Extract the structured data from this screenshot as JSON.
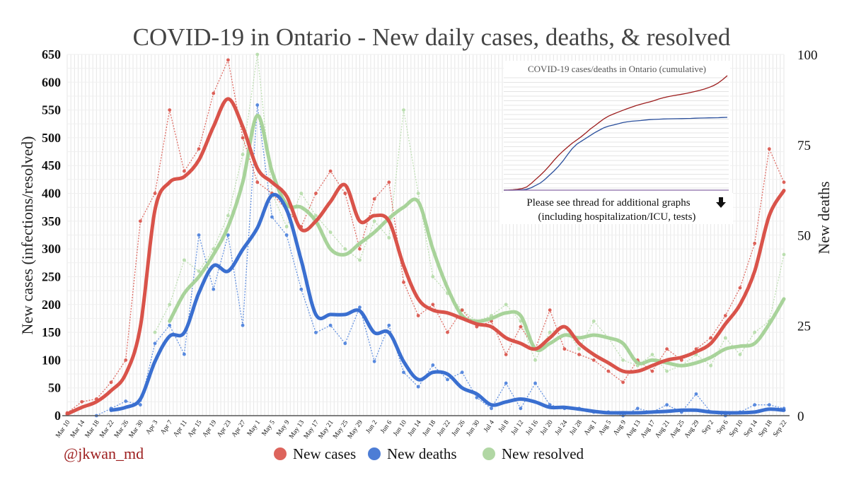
{
  "chart_data": {
    "type": "line",
    "title": "COVID-19 in Ontario - New daily cases, deaths, & resolved",
    "ylabel": "New cases (infections/resolved)",
    "y2label": "New deaths",
    "ylim": [
      0,
      650
    ],
    "y2lim": [
      0,
      100
    ],
    "yticks": [
      0,
      50,
      100,
      150,
      200,
      250,
      300,
      350,
      400,
      450,
      500,
      550,
      600,
      650
    ],
    "y2ticks": [
      0,
      25,
      50,
      75,
      100
    ],
    "grid": true,
    "legend_position": "bottom",
    "x": [
      "Mar 10",
      "Mar 14",
      "Mar 18",
      "Mar 22",
      "Mar 26",
      "Mar 30",
      "Apr 3",
      "Apr 7",
      "Apr 11",
      "Apr 15",
      "Apr 19",
      "Apr 23",
      "Apr 27",
      "May 1",
      "May 5",
      "May 9",
      "May 13",
      "May 17",
      "May 21",
      "May 25",
      "May 29",
      "Jun 2",
      "Jun 6",
      "Jun 10",
      "Jun 14",
      "Jun 18",
      "Jun 22",
      "Jun 26",
      "Jun 30",
      "Jul 4",
      "Jul 8",
      "Jul 12",
      "Jul 16",
      "Jul 20",
      "Jul 24",
      "Jul 28",
      "Aug 1",
      "Aug 5",
      "Aug 9",
      "Aug 13",
      "Aug 17",
      "Aug 21",
      "Aug 25",
      "Aug 29",
      "Sep 2",
      "Sep 6",
      "Sep 10",
      "Sep 14",
      "Sep 18",
      "Sep 22"
    ],
    "series": [
      {
        "name": "New cases",
        "axis": "left",
        "color": "#d9534a",
        "raw_color": "#d9534a",
        "avg": [
          3,
          15,
          25,
          45,
          75,
          160,
          370,
          420,
          430,
          460,
          520,
          570,
          520,
          445,
          420,
          395,
          335,
          350,
          385,
          415,
          350,
          360,
          350,
          270,
          210,
          190,
          185,
          175,
          165,
          160,
          140,
          130,
          120,
          140,
          160,
          130,
          110,
          95,
          80,
          80,
          90,
          100,
          105,
          115,
          130,
          165,
          200,
          260,
          360,
          405
        ],
        "daily": [
          5,
          25,
          30,
          60,
          100,
          350,
          400,
          550,
          440,
          480,
          580,
          640,
          500,
          420,
          400,
          370,
          340,
          400,
          440,
          400,
          300,
          390,
          420,
          240,
          180,
          200,
          150,
          190,
          160,
          170,
          110,
          160,
          120,
          190,
          120,
          110,
          100,
          80,
          60,
          100,
          80,
          120,
          100,
          120,
          140,
          180,
          230,
          310,
          480,
          420
        ]
      },
      {
        "name": "New deaths",
        "axis": "right",
        "color": "#3a6fd0",
        "raw_color": "#4a7fdc",
        "avg": [
          null,
          null,
          null,
          1.5,
          2.3,
          4.6,
          15,
          22,
          23,
          34,
          41.5,
          40,
          46,
          52,
          61,
          57,
          43,
          28,
          28,
          28,
          29,
          23,
          23,
          15,
          10,
          12,
          11.5,
          7.7,
          6,
          3,
          3.8,
          4.6,
          3.8,
          2.3,
          2.3,
          1.8,
          1.2,
          0.8,
          0.8,
          0.8,
          1,
          1.2,
          1.5,
          1.5,
          1,
          0.8,
          0.8,
          1,
          1.8,
          1.5
        ],
        "daily": [
          null,
          null,
          0,
          2,
          4,
          3,
          20,
          25,
          17,
          50,
          35,
          50,
          25,
          86,
          55,
          50,
          35,
          23,
          25,
          20,
          30,
          15,
          25,
          12,
          8,
          14,
          10,
          12,
          5,
          2,
          9,
          2,
          9,
          3,
          2,
          2,
          1,
          1,
          0,
          2,
          1,
          3,
          1,
          6,
          1,
          0,
          1,
          3,
          3,
          2
        ]
      },
      {
        "name": "New resolved",
        "axis": "left",
        "color": "#a8d39a",
        "raw_color": "#b5dba8",
        "avg": [
          null,
          null,
          null,
          null,
          null,
          null,
          null,
          170,
          220,
          250,
          290,
          340,
          420,
          540,
          440,
          380,
          375,
          350,
          300,
          290,
          310,
          330,
          355,
          375,
          385,
          300,
          230,
          180,
          170,
          175,
          185,
          180,
          120,
          130,
          145,
          140,
          145,
          140,
          130,
          95,
          100,
          95,
          90,
          95,
          105,
          120,
          125,
          130,
          165,
          210
        ],
        "daily": [
          null,
          null,
          null,
          null,
          null,
          null,
          150,
          200,
          280,
          260,
          300,
          360,
          470,
          650,
          400,
          340,
          400,
          360,
          330,
          300,
          280,
          350,
          320,
          550,
          400,
          250,
          220,
          190,
          170,
          180,
          200,
          170,
          100,
          150,
          160,
          120,
          170,
          140,
          100,
          90,
          110,
          80,
          90,
          110,
          90,
          140,
          110,
          150,
          170,
          290
        ]
      }
    ]
  },
  "inset": {
    "title": "COVID-19 cases/deaths in Ontario (cumulative)",
    "note_line1": "Please see thread for additional graphs",
    "note_line2": "(including hospitalization/ICU, tests)",
    "arrow_icon": "down-arrow-icon"
  },
  "credit": "@jkwan_md"
}
